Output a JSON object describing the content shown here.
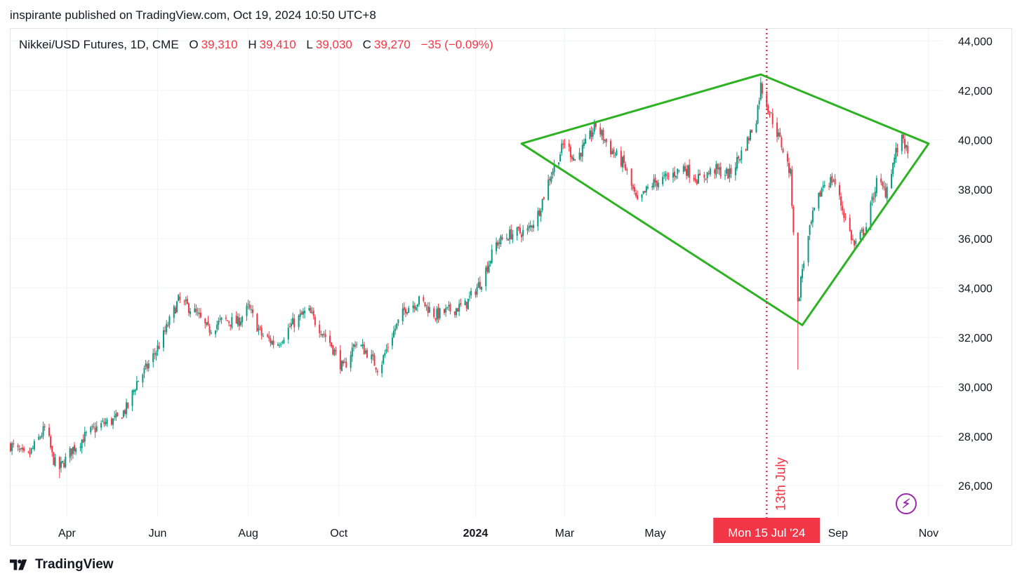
{
  "publish_line": "inspirante published on TradingView.com, Oct 19, 2024 10:50 UTC+8",
  "legend": {
    "symbol": "Nikkei/USD Futures, 1D, CME",
    "open_label": "O",
    "open_value": "39,310",
    "high_label": "H",
    "high_value": "39,410",
    "low_label": "L",
    "low_value": "39,030",
    "close_label": "C",
    "close_value": "39,270",
    "change": "−35 (−0.09%)"
  },
  "footer_brand": "TradingView",
  "icons": {
    "brand": "tradingview-logo-icon",
    "bolt": "lightning-bolt-icon"
  },
  "colors": {
    "up": "#089981",
    "down": "#f23645",
    "pattern": "#2db224",
    "grid": "#f0f3fa",
    "marker": "#f23645"
  },
  "chart_data": {
    "type": "candlestick",
    "title": "Nikkei/USD Futures, 1D, CME",
    "y_axis": {
      "side": "right",
      "ylim": [
        24700,
        44500
      ],
      "ticks": [
        26000,
        28000,
        30000,
        32000,
        34000,
        36000,
        38000,
        40000,
        42000,
        44000
      ],
      "tick_labels": [
        "26,000",
        "28,000",
        "30,000",
        "32,000",
        "34,000",
        "36,000",
        "38,000",
        "40,000",
        "42,000",
        "44,000"
      ]
    },
    "x_axis": {
      "xlim": [
        "2023-02-22",
        "2024-11-10"
      ],
      "ticks": [
        {
          "date": "2023-04-01",
          "label": "Apr",
          "bold": false
        },
        {
          "date": "2023-06-01",
          "label": "Jun",
          "bold": false
        },
        {
          "date": "2023-08-01",
          "label": "Aug",
          "bold": false
        },
        {
          "date": "2023-10-01",
          "label": "Oct",
          "bold": false
        },
        {
          "date": "2024-01-01",
          "label": "2024",
          "bold": true
        },
        {
          "date": "2024-03-01",
          "label": "Mar",
          "bold": false
        },
        {
          "date": "2024-05-01",
          "label": "May",
          "bold": false
        },
        {
          "date": "2024-09-01",
          "label": "Sep",
          "bold": false
        },
        {
          "date": "2024-11-01",
          "label": "Nov",
          "bold": false
        }
      ]
    },
    "grid": true,
    "price_path": [
      [
        "2023-02-22",
        27650
      ],
      [
        "2023-03-05",
        27100
      ],
      [
        "2023-03-12",
        27800
      ],
      [
        "2023-03-18",
        28400
      ],
      [
        "2023-03-22",
        27200
      ],
      [
        "2023-03-26",
        26600
      ],
      [
        "2023-04-05",
        27500
      ],
      [
        "2023-04-15",
        28100
      ],
      [
        "2023-04-25",
        28500
      ],
      [
        "2023-05-05",
        28700
      ],
      [
        "2023-05-12",
        29200
      ],
      [
        "2023-05-18",
        30200
      ],
      [
        "2023-05-25",
        30800
      ],
      [
        "2023-06-03",
        31800
      ],
      [
        "2023-06-15",
        33500
      ],
      [
        "2023-06-25",
        33100
      ],
      [
        "2023-07-05",
        32300
      ],
      [
        "2023-07-15",
        32700
      ],
      [
        "2023-07-25",
        32600
      ],
      [
        "2023-08-01",
        33200
      ],
      [
        "2023-08-10",
        32100
      ],
      [
        "2023-08-20",
        31700
      ],
      [
        "2023-08-30",
        32500
      ],
      [
        "2023-09-10",
        33100
      ],
      [
        "2023-09-18",
        32400
      ],
      [
        "2023-09-25",
        31800
      ],
      [
        "2023-10-04",
        30700
      ],
      [
        "2023-10-12",
        31800
      ],
      [
        "2023-10-20",
        31400
      ],
      [
        "2023-10-28",
        30700
      ],
      [
        "2023-11-05",
        32000
      ],
      [
        "2023-11-15",
        33200
      ],
      [
        "2023-11-25",
        33500
      ],
      [
        "2023-12-05",
        32900
      ],
      [
        "2023-12-15",
        33100
      ],
      [
        "2023-12-25",
        33300
      ],
      [
        "2024-01-05",
        34300
      ],
      [
        "2024-01-15",
        35800
      ],
      [
        "2024-01-25",
        36200
      ],
      [
        "2024-02-05",
        36300
      ],
      [
        "2024-02-12",
        37000
      ],
      [
        "2024-02-20",
        38500
      ],
      [
        "2024-03-01",
        39900
      ],
      [
        "2024-03-08",
        39200
      ],
      [
        "2024-03-15",
        39800
      ],
      [
        "2024-03-22",
        40600
      ],
      [
        "2024-04-01",
        39600
      ],
      [
        "2024-04-10",
        39000
      ],
      [
        "2024-04-19",
        37400
      ],
      [
        "2024-04-28",
        38200
      ],
      [
        "2024-05-10",
        38500
      ],
      [
        "2024-05-20",
        38900
      ],
      [
        "2024-05-30",
        38400
      ],
      [
        "2024-06-10",
        38800
      ],
      [
        "2024-06-20",
        38600
      ],
      [
        "2024-07-01",
        39800
      ],
      [
        "2024-07-08",
        40900
      ],
      [
        "2024-07-11",
        42200
      ],
      [
        "2024-07-16",
        41300
      ],
      [
        "2024-07-25",
        39800
      ],
      [
        "2024-07-31",
        38600
      ],
      [
        "2024-08-02",
        36400
      ],
      [
        "2024-08-05",
        33300
      ],
      [
        "2024-08-08",
        34800
      ],
      [
        "2024-08-15",
        36900
      ],
      [
        "2024-08-22",
        38200
      ],
      [
        "2024-08-29",
        38400
      ],
      [
        "2024-09-05",
        37000
      ],
      [
        "2024-09-12",
        35700
      ],
      [
        "2024-09-20",
        36500
      ],
      [
        "2024-09-27",
        38300
      ],
      [
        "2024-10-03",
        37900
      ],
      [
        "2024-10-10",
        39500
      ],
      [
        "2024-10-15",
        40100
      ],
      [
        "2024-10-18",
        39270
      ]
    ],
    "extremes": [
      {
        "date": "2023-03-27",
        "low": 26300
      },
      {
        "date": "2024-07-11",
        "high": 42550
      },
      {
        "date": "2024-08-05",
        "low": 30700
      }
    ],
    "pattern": {
      "type": "diamond",
      "points": [
        {
          "date": "2024-02-01",
          "price": 39850
        },
        {
          "date": "2024-07-11",
          "price": 42650
        },
        {
          "date": "2024-11-01",
          "price": 39850
        },
        {
          "date": "2024-08-08",
          "price": 32500
        }
      ]
    },
    "annotation": {
      "date": "2024-07-15",
      "text": "13th July"
    },
    "crosshair_label": "Mon 15 Jul '24"
  }
}
